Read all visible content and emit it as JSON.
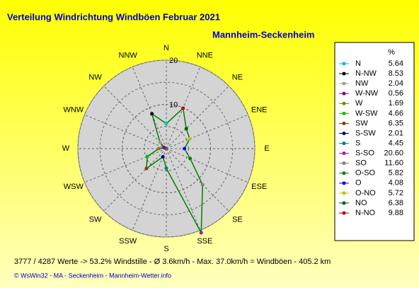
{
  "chart_data": {
    "type": "radar",
    "title": "Verteilung Windrichtung Windböen  Februar 2021",
    "subtitle": "Mannheim-Seckenheim",
    "direction_labels": [
      "N",
      "NNE",
      "NE",
      "ENE",
      "E",
      "ESE",
      "SE",
      "SSE",
      "S",
      "SSW",
      "SW",
      "WSW",
      "W",
      "WNW",
      "NW",
      "NNW"
    ],
    "legend_header": "%",
    "categories": [
      "N",
      "N-NW",
      "NW",
      "W-NW",
      "W",
      "W-SW",
      "SW",
      "S-SW",
      "S",
      "S-SO",
      "SO",
      "O-SO",
      "O",
      "O-NO",
      "NO",
      "N-NO"
    ],
    "values": [
      5.64,
      8.53,
      2.04,
      0.56,
      1.69,
      4.66,
      6.35,
      2.01,
      4.45,
      20.6,
      11.6,
      5.82,
      4.08,
      5.72,
      6.38,
      9.88
    ],
    "value_labels": [
      "5.64",
      "8.53",
      "2.04",
      "0.56",
      "1.69",
      "4.66",
      "6.35",
      "2.01",
      "4.45",
      "20.60",
      "11.60",
      "5.82",
      "4.08",
      "5.72",
      "6.38",
      "9.88"
    ],
    "point_colors": [
      "#00c0c0",
      "#000000",
      "#a0a080",
      "#800080",
      "#808000",
      "#00c000",
      "#804000",
      "#000080",
      "#008080",
      "#c000c0",
      "#808080",
      "#008000",
      "#0000ff",
      "#c0c000",
      "#006000",
      "#c00000"
    ],
    "line_color": "#008000",
    "rlim": [
      0,
      20
    ],
    "rticks": [
      10,
      20
    ],
    "grid_step": 5,
    "footer": "3777 / 4287 Werte  -> 53.2% Windstille   -   Ø 3.6km/h  -  Max. 37.0km/h = Windböen   -   405.2 km",
    "credit": "© WsWin32  -  MA - Seckenheim  -  Mannheim-Wetter.info"
  }
}
